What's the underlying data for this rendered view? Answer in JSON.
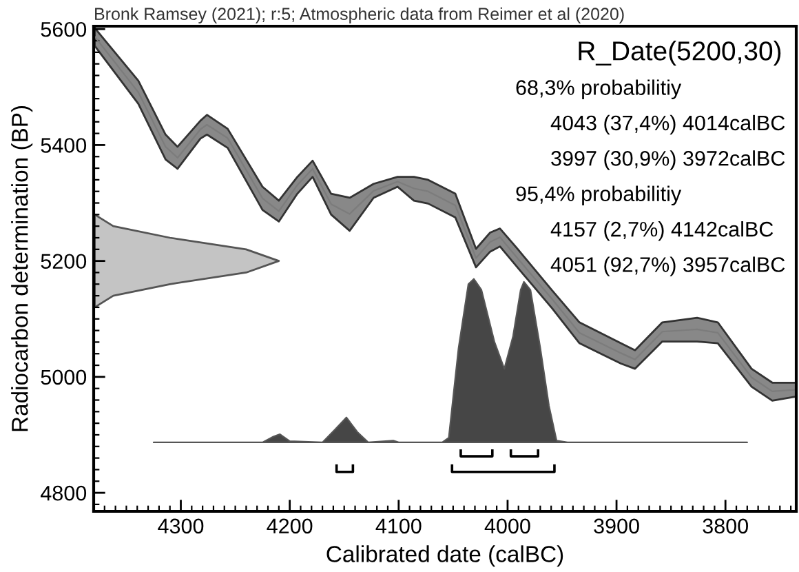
{
  "chart_data": {
    "type": "line",
    "title": "R_Date(5200,30)",
    "xlabel": "Calibrated date (calBC)",
    "ylabel": "Radiocarbon determination (BP)",
    "annotations": [
      "Bronk Ramsey (2021); r:5; Atmospheric data from Reimer et al (2020)",
      "68,3% probabilitiy",
      "4043 (37,4%) 4014calBC",
      "3997 (30,9%) 3972calBC",
      "95,4% probabilitiy",
      "4157 (2,7%) 4142calBC",
      "4051 (92,7%) 3957calBC"
    ],
    "xlim": [
      4380,
      3735
    ],
    "ylim": [
      4768,
      5605
    ],
    "xticks": [
      4300,
      4200,
      4100,
      4000,
      3900,
      3800
    ],
    "yticks": [
      4800,
      5000,
      5200,
      5400,
      5600
    ],
    "grid": false,
    "legend": false,
    "series": [
      {
        "color": "#888888",
        "x": [
          4379,
          4339,
          4314,
          4303,
          4282,
          4276,
          4257,
          4225,
          4210,
          4193,
          4179,
          4162,
          4145,
          4123,
          4101,
          4086,
          4073,
          4048,
          4029,
          4016,
          4007,
          3991,
          3959,
          3934,
          3896,
          3883,
          3858,
          3826,
          3807,
          3776,
          3757,
          3735
        ],
        "values": [
          5587,
          5491,
          5397,
          5378,
          5427,
          5435,
          5412,
          5308,
          5286,
          5331,
          5359,
          5298,
          5281,
          5321,
          5337,
          5325,
          5320,
          5296,
          5205,
          5233,
          5241,
          5205,
          5134,
          5076,
          5041,
          5030,
          5078,
          5082,
          5076,
          4999,
          4975,
          4978
        ],
        "lower": [
          5571,
          5471,
          5375,
          5359,
          5411,
          5418,
          5395,
          5288,
          5268,
          5316,
          5345,
          5280,
          5252,
          5309,
          5328,
          5304,
          5299,
          5275,
          5189,
          5216,
          5225,
          5189,
          5118,
          5058,
          5023,
          5014,
          5061,
          5061,
          5058,
          4983,
          4959,
          4966
        ],
        "upper": [
          5602,
          5511,
          5418,
          5397,
          5442,
          5452,
          5428,
          5328,
          5304,
          5345,
          5373,
          5316,
          5309,
          5333,
          5345,
          5345,
          5340,
          5316,
          5221,
          5249,
          5256,
          5221,
          5149,
          5094,
          5058,
          5046,
          5094,
          5102,
          5094,
          5014,
          4990,
          4990
        ]
      },
      {
        "type": "area",
        "color": "#c4c4c4",
        "x": [
          4379,
          4362,
          4310,
          4240,
          4210,
          4240,
          4310,
          4362,
          4379
        ],
        "values": [
          5280,
          5260,
          5240,
          5220,
          5200,
          5180,
          5160,
          5140,
          5120
        ]
      },
      {
        "type": "area",
        "color": "#464646",
        "x": [
          4325,
          4225,
          4215,
          4209,
          4200,
          4170,
          4158,
          4148,
          4138,
          4128,
          4105,
          4100,
          4060,
          4054,
          4045,
          4036,
          4031,
          4024,
          4012,
          4003,
          3995,
          3988,
          3985,
          3979,
          3970,
          3962,
          3955,
          3945,
          3780
        ],
        "values": [
          4887,
          4887,
          4897,
          4901,
          4889,
          4887,
          4910,
          4930,
          4905,
          4887,
          4890,
          4887,
          4887,
          4895,
          5050,
          5160,
          5169,
          5150,
          5060,
          5014,
          5070,
          5150,
          5164,
          5150,
          5050,
          4950,
          4890,
          4887,
          4887
        ]
      },
      {
        "color": "#000000",
        "x": [
          4043,
          4043,
          4014,
          4014,
          null,
          3997,
          3997,
          3972,
          3972
        ],
        "values": [
          4873,
          4863,
          4863,
          4873,
          null,
          4873,
          4863,
          4863,
          4873
        ]
      },
      {
        "color": "#000000",
        "x": [
          4157,
          4157,
          4142,
          4142,
          null,
          4051,
          4051,
          3957,
          3957
        ],
        "values": [
          4847,
          4836,
          4836,
          4847,
          null,
          4847,
          4836,
          4836,
          4847
        ]
      }
    ]
  }
}
